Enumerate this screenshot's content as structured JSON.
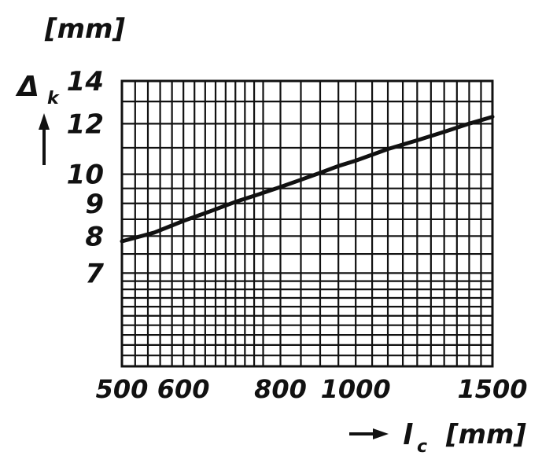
{
  "chart_data": {
    "type": "line",
    "title": "",
    "y_unit": "[mm]",
    "ylabel_symbol": "Δ",
    "ylabel_subscript": "k",
    "xlabel_symbol": "l",
    "xlabel_subscript": "c",
    "x_unit": "[mm]",
    "x_scale": "log",
    "y_scale": "log",
    "xlim": [
      500,
      1500
    ],
    "ylim": [
      5,
      14
    ],
    "grid": true,
    "x_ticks": [
      {
        "value": 500,
        "label": "500"
      },
      {
        "value": 600,
        "label": "600"
      },
      {
        "value": 800,
        "label": "800"
      },
      {
        "value": 1000,
        "label": "1000"
      },
      {
        "value": 1500,
        "label": "1500"
      }
    ],
    "y_ticks": [
      {
        "value": 7,
        "label": "7"
      },
      {
        "value": 8,
        "label": "8"
      },
      {
        "value": 9,
        "label": "9"
      },
      {
        "value": 10,
        "label": "10"
      },
      {
        "value": 12,
        "label": "12"
      },
      {
        "value": 14,
        "label": "14"
      }
    ],
    "x_gridlines": [
      500,
      520,
      540,
      560,
      580,
      600,
      620,
      640,
      660,
      680,
      700,
      720,
      740,
      760,
      800,
      850,
      900,
      950,
      1000,
      1050,
      1100,
      1150,
      1200,
      1250,
      1300,
      1350,
      1400,
      1450,
      1500
    ],
    "y_gridlines": [
      5,
      5.2,
      5.4,
      5.6,
      5.8,
      6,
      6.2,
      6.4,
      6.6,
      6.8,
      7,
      7.5,
      8,
      8.5,
      9,
      9.5,
      10,
      11,
      12,
      13,
      14
    ],
    "series": [
      {
        "x": [
          500,
          550,
          600,
          650,
          700,
          750,
          800,
          850,
          900,
          950,
          1000,
          1100,
          1200,
          1300,
          1400,
          1500
        ],
        "y": [
          7.85,
          8.1,
          8.45,
          8.75,
          9.05,
          9.3,
          9.55,
          9.8,
          10.05,
          10.3,
          10.5,
          10.95,
          11.3,
          11.65,
          12.0,
          12.3
        ]
      }
    ]
  }
}
